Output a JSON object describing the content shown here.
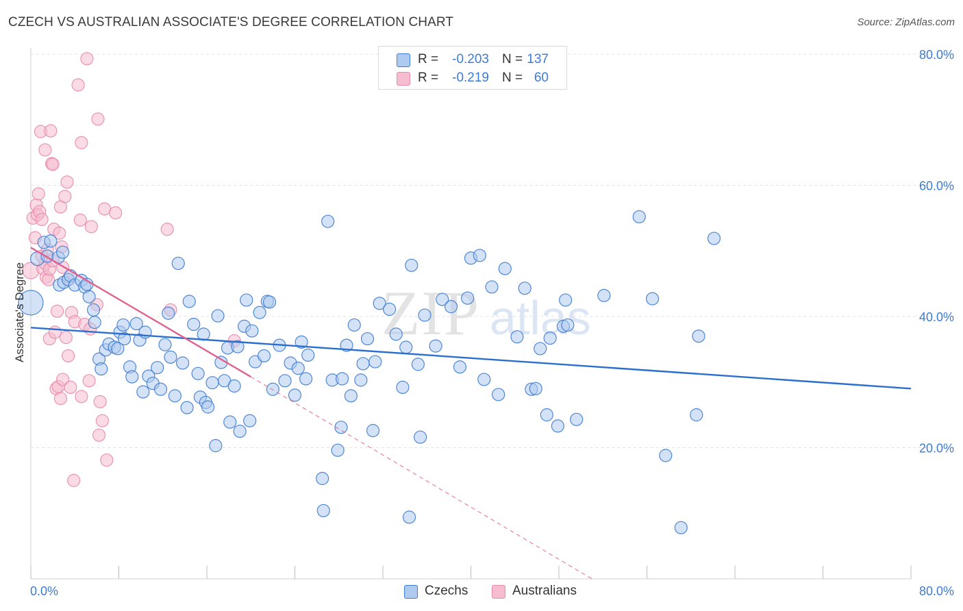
{
  "header": {
    "title": "CZECH VS AUSTRALIAN ASSOCIATE'S DEGREE CORRELATION CHART",
    "source": "Source: ZipAtlas.com"
  },
  "watermark": "ZIPatlas",
  "colors": {
    "blue_fill": "#aecbef",
    "blue_stroke": "#3d7bd0",
    "blue_line": "#2b6fce",
    "pink_fill": "#f6bdd0",
    "pink_stroke": "#e88aab",
    "pink_line": "#e0628f",
    "tick_text": "#3d7bd0",
    "grid": "#e2e2e2"
  },
  "legend": {
    "rows": [
      {
        "r_label": "R =",
        "r_value": "-0.203",
        "n_label": "N =",
        "n_value": "137",
        "series": "blue"
      },
      {
        "r_label": "R =",
        "r_value": "-0.219",
        "n_label": "N =",
        "n_value": "60",
        "series": "pink"
      }
    ]
  },
  "bottom_legend": {
    "czechs": "Czechs",
    "australians": "Australians"
  },
  "chart_data": {
    "type": "scatter",
    "title": "CZECH VS AUSTRALIAN ASSOCIATE'S DEGREE CORRELATION CHART",
    "xlabel": "",
    "ylabel": "Associate's Degree",
    "xlim": [
      0,
      80
    ],
    "ylim": [
      0,
      82
    ],
    "x_tick_labels": [
      "0.0%",
      "80.0%"
    ],
    "y_ticks": [
      20,
      40,
      60,
      80
    ],
    "y_tick_labels": [
      "20.0%",
      "40.0%",
      "60.0%",
      "80.0%"
    ],
    "grid": true,
    "legend_placement": "top-center",
    "series": [
      {
        "name": "Czechs",
        "color": "#3d7bd0",
        "trend": {
          "x": [
            0,
            80
          ],
          "y": [
            38.3,
            29.0
          ],
          "style": "solid"
        },
        "points": [
          [
            0.0,
            42.1,
            18
          ],
          [
            0.6,
            48.8,
            10
          ],
          [
            1.2,
            51.3,
            9
          ],
          [
            1.5,
            49.2,
            9
          ],
          [
            1.8,
            51.5,
            9
          ],
          [
            2.5,
            49.0,
            9
          ],
          [
            2.6,
            44.8,
            9
          ],
          [
            2.9,
            49.8,
            9
          ],
          [
            3.0,
            45.2,
            9
          ],
          [
            3.4,
            45.6,
            9
          ],
          [
            3.6,
            46.2,
            9
          ],
          [
            4.0,
            44.8,
            9
          ],
          [
            4.6,
            45.5,
            9
          ],
          [
            4.9,
            44.5,
            9
          ],
          [
            5.1,
            44.9,
            9
          ],
          [
            5.3,
            43.0,
            9
          ],
          [
            5.7,
            41.0,
            9
          ],
          [
            5.8,
            39.1,
            9
          ],
          [
            6.2,
            33.5,
            9
          ],
          [
            6.4,
            32.0,
            9
          ],
          [
            6.8,
            34.9,
            9
          ],
          [
            7.1,
            35.8,
            9
          ],
          [
            7.6,
            35.3,
            9
          ],
          [
            7.9,
            35.1,
            9
          ],
          [
            8.1,
            37.6,
            9
          ],
          [
            8.4,
            38.7,
            9
          ],
          [
            8.5,
            36.6,
            9
          ],
          [
            9.0,
            32.3,
            9
          ],
          [
            9.2,
            30.8,
            9
          ],
          [
            9.6,
            38.9,
            9
          ],
          [
            9.9,
            36.4,
            9
          ],
          [
            10.2,
            28.5,
            9
          ],
          [
            10.4,
            37.6,
            9
          ],
          [
            10.7,
            30.9,
            9
          ],
          [
            11.1,
            29.8,
            9
          ],
          [
            11.5,
            32.2,
            9
          ],
          [
            11.8,
            28.9,
            9
          ],
          [
            12.2,
            35.7,
            9
          ],
          [
            12.5,
            40.5,
            9
          ],
          [
            12.7,
            33.8,
            9
          ],
          [
            13.1,
            27.9,
            9
          ],
          [
            13.4,
            48.1,
            9
          ],
          [
            13.8,
            32.9,
            9
          ],
          [
            14.2,
            26.1,
            9
          ],
          [
            14.4,
            42.3,
            9
          ],
          [
            14.8,
            38.8,
            9
          ],
          [
            15.2,
            31.3,
            9
          ],
          [
            15.4,
            27.7,
            9
          ],
          [
            15.7,
            37.3,
            9
          ],
          [
            15.9,
            26.9,
            9
          ],
          [
            16.1,
            26.2,
            9
          ],
          [
            16.5,
            29.9,
            9
          ],
          [
            16.8,
            20.3,
            9
          ],
          [
            17.0,
            40.1,
            9
          ],
          [
            17.3,
            33.0,
            9
          ],
          [
            17.6,
            30.2,
            9
          ],
          [
            17.9,
            35.2,
            9
          ],
          [
            18.1,
            23.9,
            9
          ],
          [
            18.5,
            29.4,
            9
          ],
          [
            18.8,
            35.4,
            9
          ],
          [
            19.0,
            22.5,
            9
          ],
          [
            19.4,
            38.5,
            9
          ],
          [
            19.6,
            42.5,
            9
          ],
          [
            19.9,
            24.1,
            9
          ],
          [
            20.1,
            37.8,
            9
          ],
          [
            20.4,
            33.1,
            9
          ],
          [
            20.8,
            40.6,
            9
          ],
          [
            21.2,
            34.0,
            9
          ],
          [
            21.5,
            42.3,
            9
          ],
          [
            21.7,
            42.2,
            9
          ],
          [
            22.0,
            28.9,
            9
          ],
          [
            22.6,
            35.6,
            9
          ],
          [
            23.1,
            30.2,
            9
          ],
          [
            23.6,
            32.9,
            9
          ],
          [
            24.0,
            28.0,
            9
          ],
          [
            24.3,
            32.1,
            9
          ],
          [
            24.6,
            36.1,
            9
          ],
          [
            25.0,
            30.5,
            9
          ],
          [
            25.2,
            34.1,
            9
          ],
          [
            26.5,
            15.3,
            9
          ],
          [
            26.6,
            10.4,
            9
          ],
          [
            27.0,
            54.5,
            9
          ],
          [
            27.4,
            30.3,
            9
          ],
          [
            27.9,
            19.6,
            9
          ],
          [
            28.3,
            30.5,
            9
          ],
          [
            28.2,
            23.1,
            9
          ],
          [
            28.7,
            35.6,
            9
          ],
          [
            29.1,
            27.9,
            9
          ],
          [
            29.4,
            38.7,
            9
          ],
          [
            30.0,
            30.3,
            9
          ],
          [
            30.2,
            32.8,
            9
          ],
          [
            30.6,
            36.6,
            9
          ],
          [
            31.1,
            22.6,
            9
          ],
          [
            31.3,
            33.1,
            9
          ],
          [
            31.7,
            42.0,
            9
          ],
          [
            32.6,
            41.1,
            9
          ],
          [
            33.2,
            37.3,
            9
          ],
          [
            33.8,
            29.2,
            9
          ],
          [
            34.1,
            35.3,
            9
          ],
          [
            34.4,
            9.4,
            9
          ],
          [
            34.6,
            47.8,
            9
          ],
          [
            35.2,
            32.7,
            9
          ],
          [
            35.4,
            21.6,
            9
          ],
          [
            35.8,
            40.2,
            9
          ],
          [
            36.8,
            35.5,
            9
          ],
          [
            37.4,
            42.6,
            9
          ],
          [
            38.2,
            41.5,
            9
          ],
          [
            39.0,
            32.3,
            9
          ],
          [
            39.7,
            42.8,
            9
          ],
          [
            40.0,
            48.9,
            9
          ],
          [
            40.8,
            49.3,
            9
          ],
          [
            41.2,
            30.4,
            9
          ],
          [
            41.9,
            44.5,
            9
          ],
          [
            42.5,
            28.1,
            9
          ],
          [
            43.1,
            47.3,
            9
          ],
          [
            44.2,
            36.9,
            9
          ],
          [
            44.9,
            44.3,
            9
          ],
          [
            45.5,
            28.9,
            9
          ],
          [
            45.9,
            29.0,
            9
          ],
          [
            46.3,
            35.1,
            9
          ],
          [
            46.9,
            25.0,
            9
          ],
          [
            47.2,
            36.7,
            9
          ],
          [
            47.9,
            23.3,
            9
          ],
          [
            48.4,
            38.5,
            9
          ],
          [
            48.6,
            42.5,
            9
          ],
          [
            48.8,
            38.7,
            9
          ],
          [
            49.6,
            24.3,
            9
          ],
          [
            52.1,
            43.2,
            9
          ],
          [
            55.3,
            55.2,
            9
          ],
          [
            56.5,
            42.7,
            9
          ],
          [
            57.7,
            18.8,
            9
          ],
          [
            59.1,
            7.8,
            9
          ],
          [
            60.5,
            25.0,
            9
          ],
          [
            60.7,
            37.0,
            9
          ],
          [
            62.1,
            51.9,
            9
          ]
        ]
      },
      {
        "name": "Australians",
        "color": "#e88aab",
        "trend": {
          "x": [
            0,
            20
          ],
          "y": [
            50.5,
            30.8
          ],
          "style": "solid",
          "extension": {
            "x": [
              20,
              51
            ],
            "y": [
              30.8,
              0
            ]
          }
        },
        "points": [
          [
            0.0,
            47.0,
            12
          ],
          [
            0.2,
            55.0,
            9
          ],
          [
            0.4,
            52.0,
            9
          ],
          [
            0.5,
            57.0,
            9
          ],
          [
            0.6,
            55.5,
            9
          ],
          [
            0.7,
            58.7,
            9
          ],
          [
            0.8,
            56.0,
            9
          ],
          [
            0.9,
            68.2,
            9
          ],
          [
            1.0,
            49.2,
            9
          ],
          [
            1.0,
            54.8,
            9
          ],
          [
            1.1,
            47.3,
            9
          ],
          [
            1.3,
            48.1,
            9
          ],
          [
            1.3,
            65.4,
            9
          ],
          [
            1.4,
            46.0,
            9
          ],
          [
            1.5,
            50.2,
            9
          ],
          [
            1.6,
            45.6,
            9
          ],
          [
            1.7,
            36.6,
            9
          ],
          [
            1.7,
            47.2,
            9
          ],
          [
            1.8,
            68.3,
            9
          ],
          [
            1.9,
            63.3,
            9
          ],
          [
            2.0,
            48.5,
            9
          ],
          [
            2.0,
            63.2,
            9
          ],
          [
            2.1,
            53.3,
            9
          ],
          [
            2.2,
            37.6,
            9
          ],
          [
            2.3,
            29.0,
            9
          ],
          [
            2.4,
            40.8,
            9
          ],
          [
            2.5,
            29.3,
            9
          ],
          [
            2.6,
            52.7,
            9
          ],
          [
            2.7,
            27.5,
            9
          ],
          [
            2.7,
            56.7,
            9
          ],
          [
            2.8,
            50.6,
            9
          ],
          [
            2.9,
            30.4,
            9
          ],
          [
            2.9,
            47.5,
            9
          ],
          [
            3.1,
            58.3,
            9
          ],
          [
            3.2,
            36.8,
            9
          ],
          [
            3.3,
            60.5,
            9
          ],
          [
            3.4,
            45.7,
            9
          ],
          [
            3.4,
            34.0,
            9
          ],
          [
            3.6,
            29.2,
            9
          ],
          [
            3.7,
            40.6,
            9
          ],
          [
            3.9,
            15.0,
            9
          ],
          [
            4.0,
            39.2,
            9
          ],
          [
            4.3,
            75.3,
            9
          ],
          [
            4.5,
            54.7,
            9
          ],
          [
            4.6,
            66.5,
            9
          ],
          [
            4.6,
            27.8,
            9
          ],
          [
            4.9,
            38.8,
            9
          ],
          [
            5.1,
            79.3,
            9
          ],
          [
            5.3,
            30.2,
            9
          ],
          [
            5.4,
            38.1,
            9
          ],
          [
            5.5,
            53.7,
            9
          ],
          [
            6.0,
            41.8,
            9
          ],
          [
            6.1,
            70.1,
            9
          ],
          [
            6.2,
            21.9,
            9
          ],
          [
            6.3,
            27.0,
            9
          ],
          [
            6.5,
            24.1,
            9
          ],
          [
            6.7,
            56.4,
            9
          ],
          [
            6.9,
            18.1,
            9
          ],
          [
            7.7,
            55.8,
            9
          ],
          [
            12.4,
            53.3,
            9
          ],
          [
            12.7,
            41.0,
            9
          ],
          [
            18.5,
            36.3,
            9
          ]
        ]
      }
    ]
  }
}
